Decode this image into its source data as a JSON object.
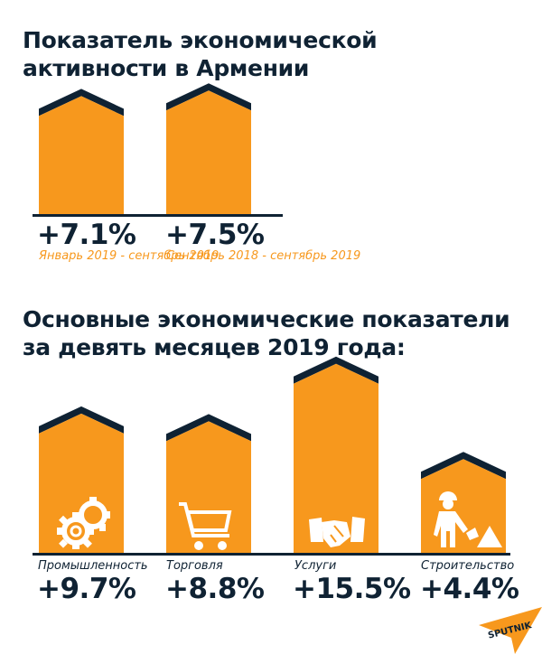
{
  "chart_data": [
    {
      "type": "bar",
      "title": "Показатель экономической активности в Армении",
      "categories": [
        "Январь 2019 - сентябрь 2019",
        "Сентябрь 2018 - сентябрь 2019"
      ],
      "values": [
        7.1,
        7.5
      ],
      "value_labels": [
        "+7.1%",
        "+7.5%"
      ],
      "unit": "%"
    },
    {
      "type": "bar",
      "title": "Основные экономические показатели за девять месяцев 2019 года:",
      "categories": [
        "Промышленность",
        "Торговля",
        "Услуги",
        "Строительство"
      ],
      "values": [
        9.7,
        8.8,
        15.5,
        4.4
      ],
      "value_labels": [
        "+9.7%",
        "+8.8%",
        "+15.5%",
        "+4.4%"
      ],
      "icons": [
        "gears-icon",
        "shopping-cart-icon",
        "handshake-icon",
        "construction-worker-icon"
      ],
      "unit": "%"
    }
  ],
  "colors": {
    "bar": "#f7981d",
    "roof": "#0f2233",
    "text": "#0f2233",
    "accent": "#f7981d"
  },
  "logo": "SPUTNIK"
}
